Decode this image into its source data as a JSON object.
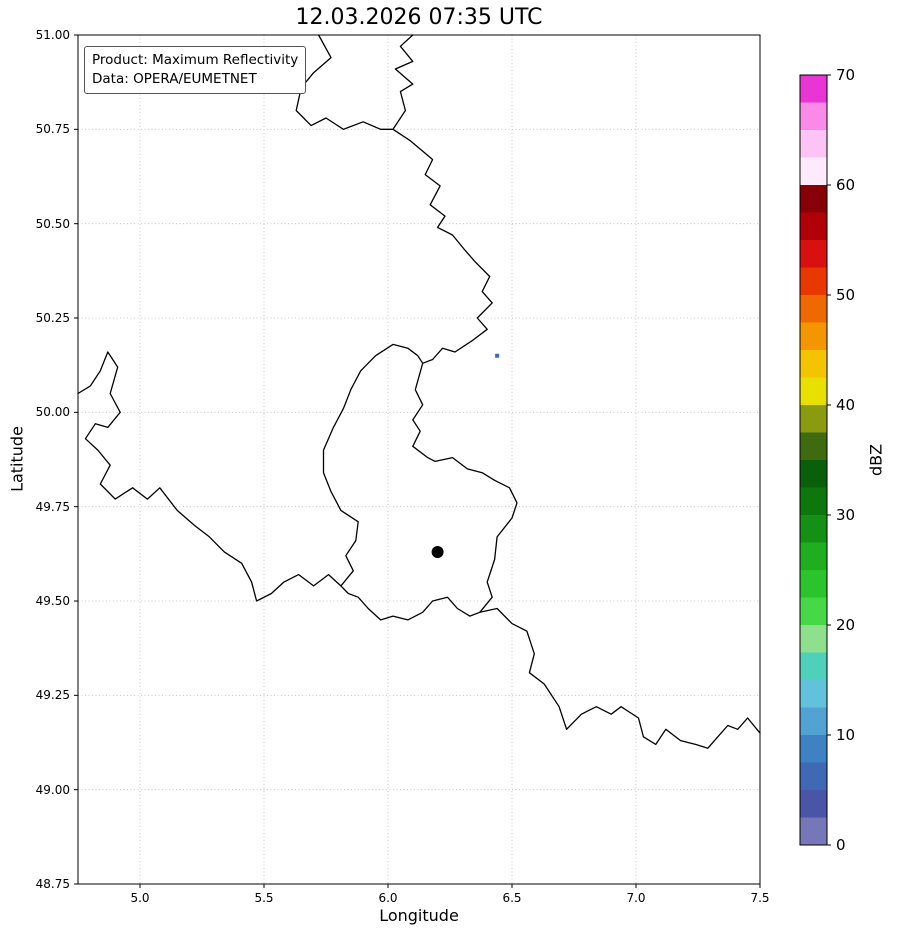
{
  "title": "12.03.2026 07:35 UTC",
  "annotation_box": {
    "line1": "Product: Maximum Reflectivity",
    "line2": "Data: OPERA/EUMETNET"
  },
  "chart_data": {
    "type": "heatmap",
    "subtype": "radar-reflectivity-map",
    "title": "12.03.2026 07:35 UTC",
    "xlabel": "Longitude",
    "ylabel": "Latitude",
    "xlim": [
      4.75,
      7.5
    ],
    "ylim": [
      48.75,
      51.0
    ],
    "grid": true,
    "xticks": [
      5.0,
      5.5,
      6.0,
      6.5,
      7.0,
      7.5
    ],
    "xtick_labels": [
      "5.0",
      "5.5",
      "6.0",
      "6.5",
      "7.0",
      "7.5"
    ],
    "yticks": [
      48.75,
      49.0,
      49.25,
      49.5,
      49.75,
      50.0,
      50.25,
      50.5,
      50.75,
      51.0
    ],
    "ytick_labels": [
      "48.75",
      "49.00",
      "49.25",
      "49.50",
      "49.75",
      "50.00",
      "50.25",
      "50.50",
      "50.75",
      "51.00"
    ],
    "colorbar": {
      "label": "dBZ",
      "min": 0,
      "max": 70,
      "band_size": 2.5,
      "ticks": [
        0,
        10,
        20,
        30,
        40,
        50,
        60,
        70
      ],
      "tick_labels": [
        "0",
        "10",
        "20",
        "30",
        "40",
        "50",
        "60",
        "70"
      ],
      "colors": [
        "#7577b9",
        "#4a55a8",
        "#3f68b5",
        "#3f82c4",
        "#52a3d4",
        "#62c2dc",
        "#4fd0bb",
        "#8ee08e",
        "#46d846",
        "#2cc42c",
        "#1fae1f",
        "#149114",
        "#0d770d",
        "#0a5f0a",
        "#3f6b10",
        "#8a9b10",
        "#e8e000",
        "#f4c400",
        "#f49600",
        "#ee6a00",
        "#e83800",
        "#d81010",
        "#b00008",
        "#870008",
        "#fdeafd",
        "#fcc4f4",
        "#f98ae8",
        "#e935d6"
      ]
    },
    "radar_echoes": [
      {
        "lon": 6.44,
        "lat": 50.15,
        "dbz": 6
      }
    ],
    "station_marker": {
      "lon": 6.2,
      "lat": 49.63,
      "color": "#000000"
    },
    "border_color": "#000000",
    "borders": {
      "nl_be": [
        [
          5.72,
          51.0
        ],
        [
          5.77,
          50.94
        ],
        [
          5.7,
          50.9
        ],
        [
          5.65,
          50.86
        ],
        [
          5.63,
          50.8
        ],
        [
          5.69,
          50.76
        ],
        [
          5.75,
          50.78
        ],
        [
          5.82,
          50.75
        ],
        [
          5.9,
          50.77
        ],
        [
          5.97,
          50.75
        ],
        [
          6.02,
          50.75
        ]
      ],
      "nl_de": [
        [
          6.02,
          50.75
        ],
        [
          6.07,
          50.8
        ],
        [
          6.05,
          50.85
        ],
        [
          6.1,
          50.87
        ],
        [
          6.03,
          50.91
        ],
        [
          6.1,
          50.93
        ],
        [
          6.05,
          50.97
        ],
        [
          6.1,
          51.0
        ]
      ],
      "be_de": [
        [
          6.02,
          50.75
        ],
        [
          6.09,
          50.72
        ],
        [
          6.18,
          50.67
        ],
        [
          6.15,
          50.63
        ],
        [
          6.21,
          50.6
        ],
        [
          6.17,
          50.55
        ],
        [
          6.23,
          50.52
        ],
        [
          6.2,
          50.49
        ],
        [
          6.26,
          50.47
        ],
        [
          6.31,
          50.43
        ],
        [
          6.35,
          50.4
        ],
        [
          6.41,
          50.36
        ],
        [
          6.38,
          50.32
        ],
        [
          6.42,
          50.29
        ],
        [
          6.36,
          50.25
        ],
        [
          6.4,
          50.22
        ],
        [
          6.34,
          50.19
        ],
        [
          6.27,
          50.16
        ],
        [
          6.22,
          50.17
        ],
        [
          6.18,
          50.14
        ],
        [
          6.14,
          50.13
        ]
      ],
      "luxembourg": [
        [
          6.14,
          50.13
        ],
        [
          6.11,
          50.06
        ],
        [
          6.14,
          50.02
        ],
        [
          6.1,
          49.98
        ],
        [
          6.13,
          49.95
        ],
        [
          6.1,
          49.91
        ],
        [
          6.16,
          49.88
        ],
        [
          6.19,
          49.87
        ],
        [
          6.26,
          49.88
        ],
        [
          6.32,
          49.85
        ],
        [
          6.38,
          49.84
        ],
        [
          6.43,
          49.82
        ],
        [
          6.49,
          49.8
        ],
        [
          6.52,
          49.76
        ],
        [
          6.5,
          49.72
        ],
        [
          6.44,
          49.67
        ],
        [
          6.43,
          49.61
        ],
        [
          6.4,
          49.55
        ],
        [
          6.42,
          49.51
        ],
        [
          6.37,
          49.47
        ],
        [
          6.33,
          49.46
        ],
        [
          6.28,
          49.48
        ],
        [
          6.24,
          49.51
        ],
        [
          6.18,
          49.5
        ],
        [
          6.14,
          49.47
        ],
        [
          6.08,
          49.45
        ],
        [
          6.02,
          49.46
        ],
        [
          5.97,
          49.45
        ],
        [
          5.92,
          49.48
        ],
        [
          5.88,
          49.51
        ],
        [
          5.84,
          49.52
        ],
        [
          5.81,
          49.54
        ],
        [
          5.86,
          49.58
        ],
        [
          5.83,
          49.62
        ],
        [
          5.87,
          49.66
        ],
        [
          5.88,
          49.71
        ],
        [
          5.81,
          49.74
        ],
        [
          5.77,
          49.79
        ],
        [
          5.74,
          49.84
        ],
        [
          5.74,
          49.9
        ],
        [
          5.78,
          49.96
        ],
        [
          5.82,
          50.01
        ],
        [
          5.85,
          50.06
        ],
        [
          5.89,
          50.11
        ],
        [
          5.95,
          50.15
        ],
        [
          6.02,
          50.18
        ],
        [
          6.08,
          50.17
        ],
        [
          6.12,
          50.15
        ],
        [
          6.14,
          50.13
        ]
      ],
      "fr_be": [
        [
          4.75,
          50.05
        ],
        [
          4.8,
          50.07
        ],
        [
          4.84,
          50.11
        ],
        [
          4.87,
          50.16
        ],
        [
          4.91,
          50.12
        ],
        [
          4.88,
          50.05
        ],
        [
          4.92,
          50.0
        ],
        [
          4.87,
          49.96
        ],
        [
          4.82,
          49.97
        ],
        [
          4.78,
          49.93
        ],
        [
          4.83,
          49.9
        ],
        [
          4.88,
          49.86
        ],
        [
          4.84,
          49.81
        ],
        [
          4.9,
          49.77
        ],
        [
          4.97,
          49.8
        ],
        [
          5.03,
          49.77
        ],
        [
          5.08,
          49.8
        ],
        [
          5.15,
          49.74
        ],
        [
          5.22,
          49.7
        ],
        [
          5.28,
          49.67
        ],
        [
          5.34,
          49.63
        ],
        [
          5.41,
          49.6
        ],
        [
          5.45,
          49.55
        ],
        [
          5.47,
          49.5
        ],
        [
          5.53,
          49.52
        ],
        [
          5.58,
          49.55
        ],
        [
          5.64,
          49.57
        ],
        [
          5.7,
          49.54
        ],
        [
          5.76,
          49.57
        ],
        [
          5.81,
          49.54
        ]
      ],
      "fr_de": [
        [
          6.37,
          49.47
        ],
        [
          6.44,
          49.48
        ],
        [
          6.5,
          49.44
        ],
        [
          6.56,
          49.42
        ],
        [
          6.59,
          49.36
        ],
        [
          6.57,
          49.31
        ],
        [
          6.63,
          49.28
        ],
        [
          6.69,
          49.22
        ],
        [
          6.72,
          49.16
        ],
        [
          6.78,
          49.2
        ],
        [
          6.84,
          49.22
        ],
        [
          6.9,
          49.2
        ],
        [
          6.94,
          49.22
        ],
        [
          7.01,
          49.19
        ],
        [
          7.03,
          49.14
        ],
        [
          7.08,
          49.12
        ],
        [
          7.12,
          49.16
        ],
        [
          7.18,
          49.13
        ],
        [
          7.24,
          49.12
        ],
        [
          7.29,
          49.11
        ],
        [
          7.33,
          49.14
        ],
        [
          7.37,
          49.17
        ],
        [
          7.41,
          49.16
        ],
        [
          7.45,
          49.19
        ],
        [
          7.5,
          49.15
        ]
      ]
    }
  }
}
